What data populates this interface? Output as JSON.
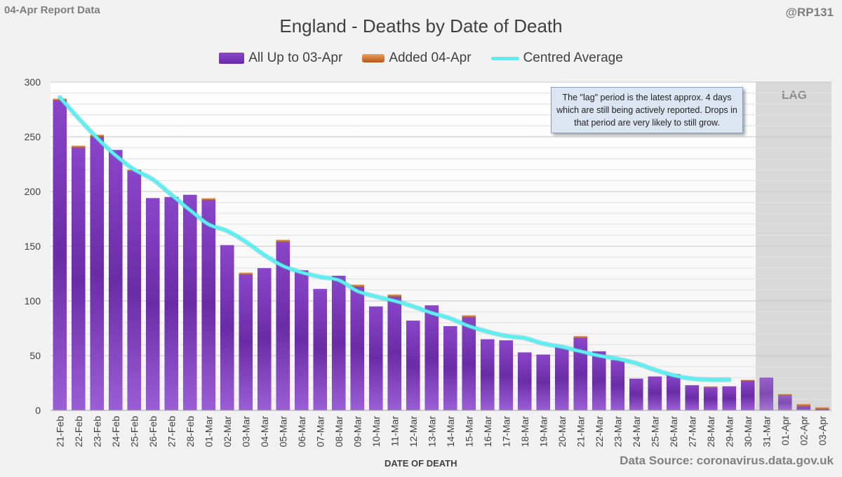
{
  "header": {
    "report_label": "04-Apr Report Data",
    "handle": "@RP131"
  },
  "footer": {
    "data_source": "Data Source: coronavirus.data.gov.uk"
  },
  "annotation": {
    "lag_label": "LAG",
    "note": "The \"lag\" period is the latest approx. 4 days which are still being actively reported. Drops in that period are very likely to still grow."
  },
  "colors": {
    "bar_top": "#8a45c9",
    "bar_bottom": "#9a5ed6",
    "added": "#d9782e",
    "average_line": "#5ef0f0",
    "lag_shade": "#d9d9d9"
  },
  "chart_data": {
    "type": "bar",
    "title": "England - Deaths by Date of Death",
    "xlabel": "DATE OF DEATH",
    "ylabel": "",
    "ylim": [
      0,
      300
    ],
    "yticks": [
      0,
      50,
      100,
      150,
      200,
      250,
      300
    ],
    "grid": true,
    "stacked": true,
    "legend_position": "top",
    "categories": [
      "21-Feb",
      "22-Feb",
      "23-Feb",
      "24-Feb",
      "25-Feb",
      "26-Feb",
      "27-Feb",
      "28-Feb",
      "01-Mar",
      "02-Mar",
      "03-Mar",
      "04-Mar",
      "05-Mar",
      "06-Mar",
      "07-Mar",
      "08-Mar",
      "09-Mar",
      "10-Mar",
      "11-Mar",
      "12-Mar",
      "13-Mar",
      "14-Mar",
      "15-Mar",
      "16-Mar",
      "17-Mar",
      "18-Mar",
      "19-Mar",
      "20-Mar",
      "21-Mar",
      "22-Mar",
      "23-Mar",
      "24-Mar",
      "25-Mar",
      "26-Mar",
      "27-Mar",
      "28-Mar",
      "29-Mar",
      "30-Mar",
      "31-Mar",
      "01-Apr",
      "02-Apr",
      "03-Apr"
    ],
    "series": [
      {
        "name": "All Up to 03-Apr",
        "kind": "bar",
        "values": [
          283,
          240,
          250,
          238,
          219,
          194,
          195,
          197,
          192,
          151,
          124,
          130,
          154,
          128,
          111,
          123,
          113,
          95,
          104,
          82,
          96,
          77,
          85,
          65,
          64,
          53,
          51,
          58,
          66,
          54,
          46,
          29,
          31,
          33,
          23,
          21,
          22,
          27,
          30,
          14,
          4,
          1
        ]
      },
      {
        "name": "Added 04-Apr",
        "kind": "bar",
        "values": [
          2,
          2,
          2,
          0,
          1,
          0,
          0,
          0,
          2,
          0,
          2,
          0,
          2,
          0,
          0,
          0,
          2,
          0,
          2,
          0,
          0,
          0,
          2,
          0,
          0,
          0,
          0,
          0,
          2,
          0,
          0,
          0,
          0,
          0,
          0,
          1,
          0,
          1,
          0,
          1,
          2,
          2
        ]
      },
      {
        "name": "Centred Average",
        "kind": "line",
        "values": [
          286,
          267,
          249,
          233,
          220,
          211,
          197,
          183,
          170,
          164,
          154,
          142,
          132,
          126,
          122,
          119,
          109,
          104,
          100,
          95,
          89,
          84,
          77,
          72,
          68,
          66,
          61,
          58,
          54,
          50,
          47,
          43,
          37,
          32,
          29,
          28,
          28,
          null,
          null,
          null,
          null,
          null
        ]
      }
    ],
    "lag_period": [
      "31-Mar",
      "03-Apr"
    ]
  }
}
